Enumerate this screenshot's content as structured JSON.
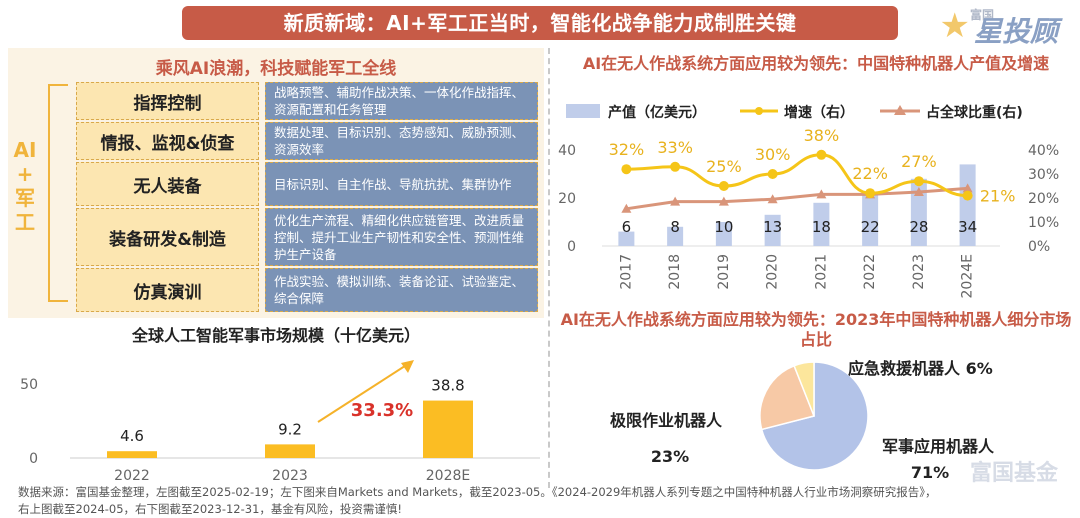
{
  "header": {
    "title": "新质新域：AI+军工正当时，智能化战争能力成制胜关键",
    "brand_small": "富国",
    "brand_big": "星投顾"
  },
  "left_top": {
    "title": "乘风AI浪潮，科技赋能军工全线",
    "side_label": [
      "AI",
      "+",
      "军",
      "工"
    ],
    "rows": [
      {
        "category": "指挥控制",
        "description": "战略预警、辅助作战决策、一体化作战指挥、资源配置和任务管理"
      },
      {
        "category": "情报、监视&侦查",
        "description": "数据处理、目标识别、态势感知、威胁预测、资源效率"
      },
      {
        "category": "无人装备",
        "description": "目标识别、自主作战、导航抗扰、集群协作"
      },
      {
        "category": "装备研发&制造",
        "description": "优化生产流程、精细化供应链管理、改进质量控制、提升工业生产韧性和安全性、预测性维护生产设备"
      },
      {
        "category": "仿真演训",
        "description": "作战实验、模拟训练、装备论证、试验鉴定、综合保障"
      }
    ]
  },
  "chart_data": [
    {
      "type": "bar",
      "title": "全球人工智能军事市场规模（十亿美元）",
      "categories": [
        "2022",
        "2023",
        "2028E"
      ],
      "values": [
        4.6,
        9.2,
        38.8
      ],
      "ylim": [
        0,
        50
      ],
      "yticks": [
        0,
        50
      ],
      "annotation": "33.3%",
      "color": "#fbbd23"
    },
    {
      "type": "bar+line",
      "title": "AI在无人作战系统方面应用较为领先：中国特种机器人产值及增速",
      "categories": [
        "2017",
        "2018",
        "2019",
        "2020",
        "2021",
        "2022",
        "2023",
        "2024E"
      ],
      "series": [
        {
          "name": "产值（亿美元）",
          "type": "bar",
          "axis": "left",
          "values": [
            6,
            8,
            10,
            13,
            18,
            22,
            28,
            34
          ],
          "color": "#c0cdea"
        },
        {
          "name": "增速（右）",
          "type": "line",
          "axis": "right",
          "values": [
            32,
            33,
            25,
            30,
            38,
            22,
            27,
            21
          ],
          "labels": [
            "32%",
            "33%",
            "25%",
            "30%",
            "38%",
            "22%",
            "27%",
            "21%"
          ],
          "color": "#f5c518"
        },
        {
          "name": "占全球比重(右)",
          "type": "line",
          "axis": "right",
          "values": [
            15.5,
            18.5,
            18.5,
            19.5,
            21.5,
            21.5,
            22.5,
            24
          ],
          "color": "#d9957a"
        }
      ],
      "ylim_left": [
        0,
        40
      ],
      "yticks_left": [
        0,
        20,
        40
      ],
      "ylim_right": [
        0,
        40
      ],
      "yticks_right": [
        "0%",
        "10%",
        "20%",
        "30%",
        "40%"
      ]
    },
    {
      "type": "pie",
      "title": "AI在无人作战系统方面应用较为领先：2023年中国特种机器人细分市场占比",
      "slices": [
        {
          "name": "军事应用机器人",
          "value": 71,
          "label": "71%",
          "color": "#b3c3e8"
        },
        {
          "name": "极限作业机器人",
          "value": 23,
          "label": "23%",
          "color": "#f7c9a6"
        },
        {
          "name": "应急救援机器人",
          "value": 6,
          "label": "6%",
          "color": "#fce69c"
        }
      ]
    }
  ],
  "footer": {
    "line1": "数据来源：富国基金整理，左图截至2025-02-19；左下图来自Markets and Markets，截至2023-05。《2024-2029年机器人系列专题之中国特种机器人行业市场洞察研究报告》，",
    "line2": "右上图截至2024-05，右下图截至2023-12-31，基金有风险，投资需谨慎!"
  },
  "watermark": "富国基金"
}
